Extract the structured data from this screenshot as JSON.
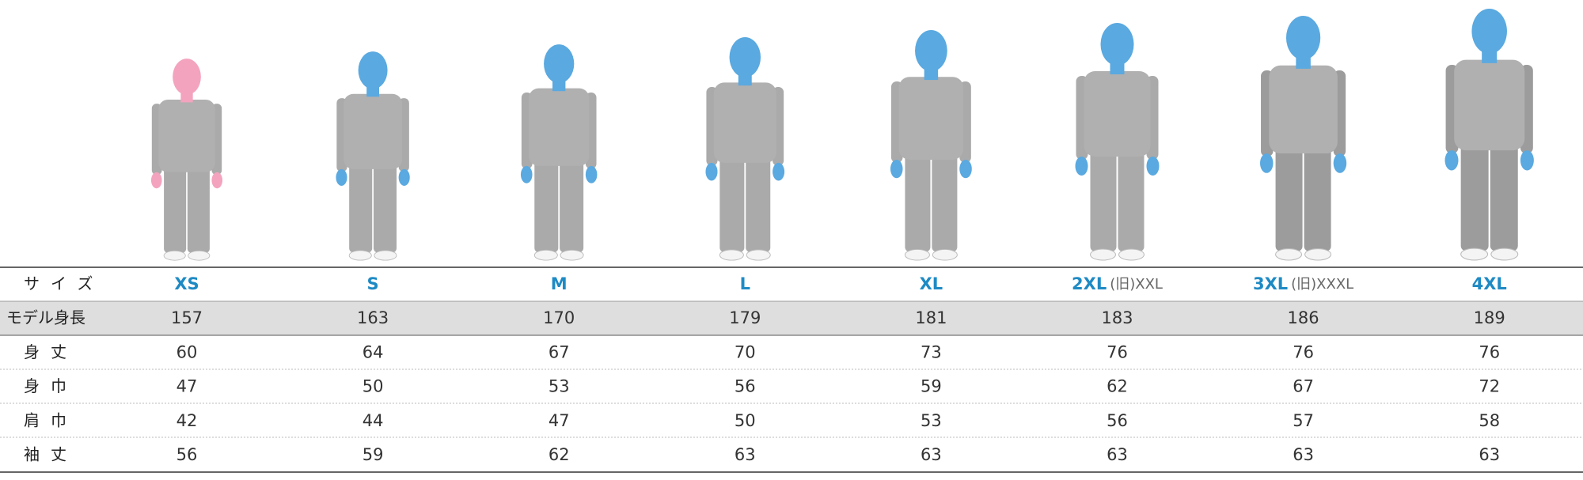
{
  "table": {
    "header_label": "サイズ",
    "columns": [
      {
        "size": "XS"
      },
      {
        "size": "S"
      },
      {
        "size": "M"
      },
      {
        "size": "L"
      },
      {
        "size": "XL"
      },
      {
        "size": "2XL",
        "old_size": "(旧)XXL"
      },
      {
        "size": "3XL",
        "old_size": "(旧)XXXL"
      },
      {
        "size": "4XL"
      }
    ],
    "rows": [
      {
        "label": "モデル身長",
        "values": [
          157,
          163,
          170,
          179,
          181,
          183,
          186,
          189
        ]
      },
      {
        "label": "身丈",
        "values": [
          60,
          64,
          67,
          70,
          73,
          76,
          76,
          76
        ]
      },
      {
        "label": "身巾",
        "values": [
          47,
          50,
          53,
          56,
          59,
          62,
          67,
          72
        ]
      },
      {
        "label": "肩巾",
        "values": [
          42,
          44,
          47,
          50,
          53,
          56,
          57,
          58
        ]
      },
      {
        "label": "袖丈",
        "values": [
          56,
          59,
          62,
          63,
          63,
          63,
          63,
          63
        ]
      }
    ]
  }
}
